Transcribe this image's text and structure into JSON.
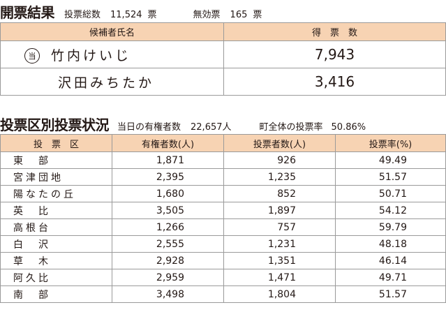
{
  "header": {
    "title": "開票結果",
    "total_label": "投票総数",
    "total_value": "11,524",
    "total_unit": "票",
    "invalid_label": "無効票",
    "invalid_value": "165",
    "invalid_unit": "票"
  },
  "results": {
    "col_name": "候補者氏名",
    "col_votes": "得　票　数",
    "elected_mark": "当",
    "candidates": [
      {
        "name": "竹内けいじ",
        "votes": "7,943"
      },
      {
        "name": "沢田みちたか",
        "votes": "3,416"
      }
    ]
  },
  "turnout": {
    "title": "投票区別投票状況",
    "voters_label": "当日の有権者数",
    "voters_value": "22,657人",
    "rate_label": "町全体の投票率",
    "rate_value": "50.86%",
    "columns": [
      "投　票　区",
      "有権者数(人)",
      "投票者数(人)",
      "投票率(%)"
    ],
    "rows": [
      [
        "東　部",
        "1,871",
        "926",
        "49.49"
      ],
      [
        "宮津団地",
        "2,395",
        "1,235",
        "51.57"
      ],
      [
        "陽なたの丘",
        "1,680",
        "852",
        "50.71"
      ],
      [
        "英　比",
        "3,505",
        "1,897",
        "54.12"
      ],
      [
        "高根台",
        "1,266",
        "757",
        "59.79"
      ],
      [
        "白　沢",
        "2,555",
        "1,231",
        "48.18"
      ],
      [
        "草　木",
        "2,928",
        "1,351",
        "46.14"
      ],
      [
        "阿久比",
        "2,959",
        "1,471",
        "49.71"
      ],
      [
        "南　部",
        "3,498",
        "1,804",
        "51.57"
      ]
    ]
  }
}
